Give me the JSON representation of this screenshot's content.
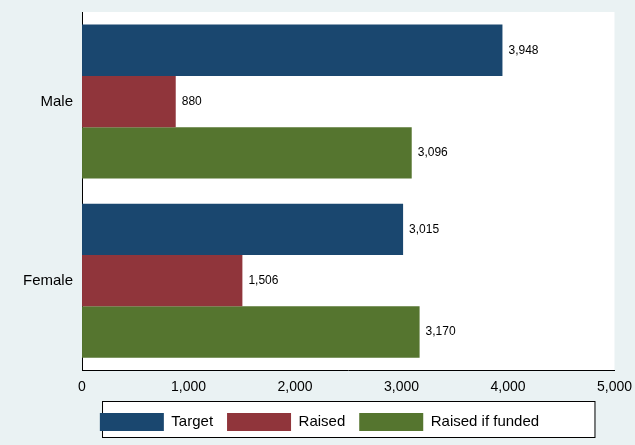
{
  "chart_data": {
    "type": "bar",
    "orientation": "horizontal",
    "categories": [
      "Male",
      "Female"
    ],
    "series": [
      {
        "name": "Target",
        "color": "#1a476f",
        "values": [
          3948,
          3015
        ],
        "value_labels": [
          "3,948",
          "3,015"
        ]
      },
      {
        "name": "Raised",
        "color": "#90353b",
        "values": [
          880,
          1506
        ],
        "value_labels": [
          "880",
          "1,506"
        ]
      },
      {
        "name": "Raised if funded",
        "color": "#55752f",
        "values": [
          3096,
          3170
        ],
        "value_labels": [
          "3,096",
          "3,170"
        ]
      }
    ],
    "xlim": [
      0,
      5000
    ],
    "xticks": [
      0,
      {
        "value": 1000,
        "label": "1,000"
      },
      {
        "value": 2000,
        "label": "2,000"
      },
      {
        "value": 3000,
        "label": "3,000"
      },
      {
        "value": 4000,
        "label": "4,000"
      },
      {
        "value": 5000,
        "label": "5,000"
      }
    ],
    "grid": false,
    "legend": "bottom",
    "data_labels": true
  }
}
